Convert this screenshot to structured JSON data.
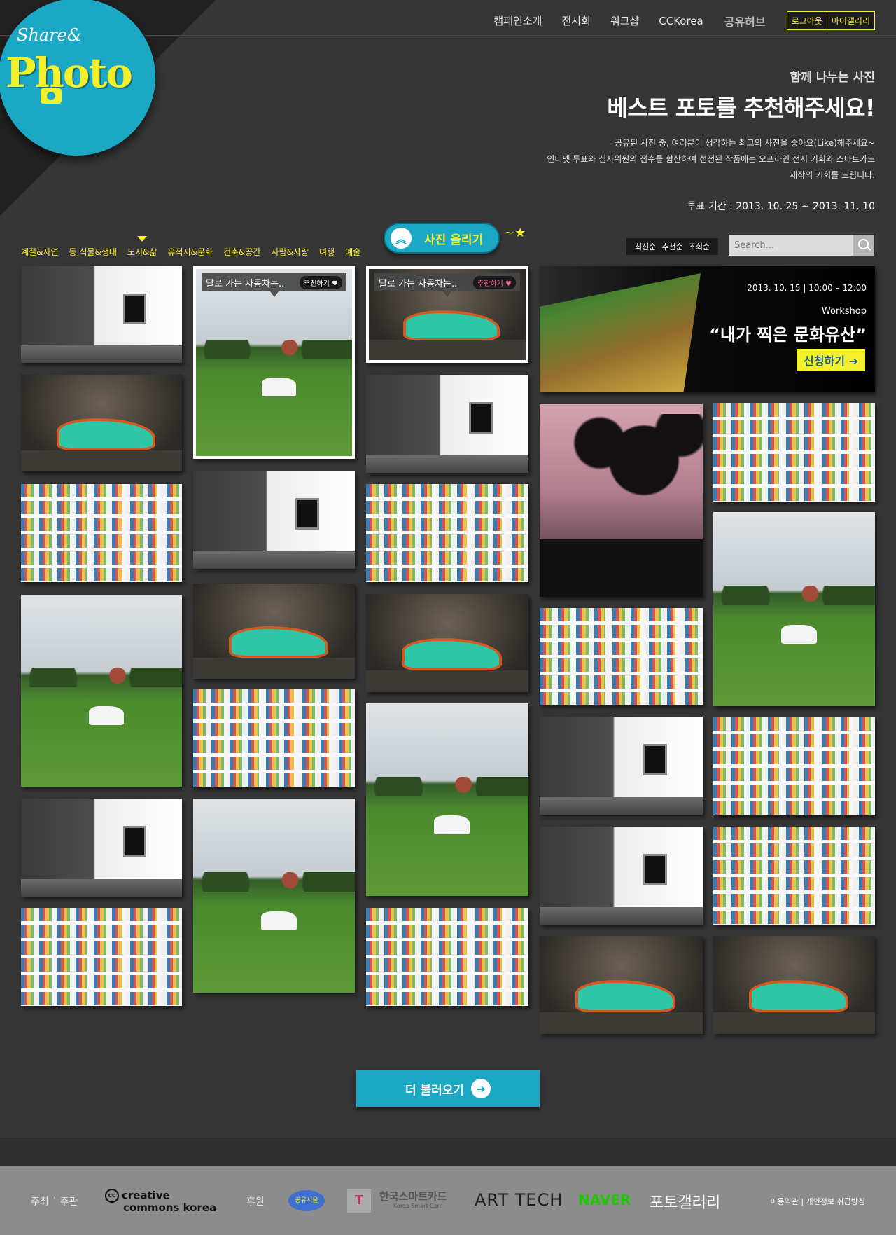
{
  "logo": {
    "line1": "Share&",
    "line2": "Photo"
  },
  "topnav": {
    "links": [
      "캠페인소개",
      "전시회",
      "워크샵",
      "CCKorea"
    ],
    "hub": "공유허브",
    "logout": "로그아웃",
    "my_gallery": "마이갤러리"
  },
  "hero": {
    "kicker": "함께 나누는 사진",
    "headline": "베스트 포토를 추천해주세요!",
    "desc": [
      "공유된 사진 중, 여러분이 생각하는 최고의 사진을 좋아요(Like)해주세요~",
      "인터넷 투표와 심사위원의 점수를 합산하여 선정된 작품에는 오프라인 전시 기회와 스마트카드",
      "제작의 기회를 드립니다."
    ],
    "period": "투표 기간 : 2013. 10. 25 ~ 2013. 11. 10"
  },
  "categories": [
    "계절&자연",
    "동,식물&생태",
    "도시&삶",
    "유적지&문화",
    "건축&공간",
    "사람&사랑",
    "여행",
    "예술"
  ],
  "active_category": "도시&삶",
  "upload_label": "사진 올리기",
  "sort": [
    "최신순",
    "추천순",
    "조회순"
  ],
  "search": {
    "placeholder": "Search..."
  },
  "tooltips": [
    {
      "text": "달로 가는 자동차는..",
      "button": "추천하기",
      "liked": false
    },
    {
      "text": "달로 가는 자동차는..",
      "button": "추천하기",
      "liked": true
    }
  ],
  "banner": {
    "date": "2013. 10. 15  |  10:00 – 12:00",
    "kicker": "Workshop",
    "title": "“내가 찍은 문화유산”",
    "button": "신청하기 ➔"
  },
  "load_more": "더 불러오기",
  "footer": {
    "host_label": "주최 ˙ 주관",
    "cc": [
      "creative",
      "commons korea"
    ],
    "sponsor_label": "후원",
    "seoul": "공유서울",
    "tmoney": "T",
    "tsmart": "한국스마트카드",
    "tsmart_sub": "Korea Smart Card",
    "arttech": "ART TECH",
    "naver": "NAVER",
    "naver_gallery": "포토갤러리",
    "links": "이용약관 | 개인정보 취급방침"
  },
  "colors": {
    "accent": "#1ba8c4",
    "highlight": "#f4ef2b",
    "background": "#363636"
  }
}
